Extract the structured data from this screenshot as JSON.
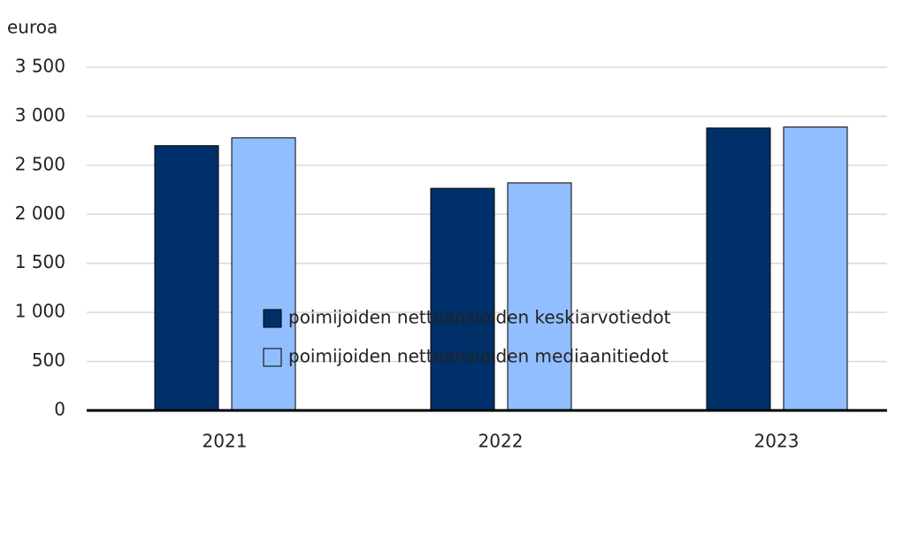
{
  "chart_data": {
    "type": "bar",
    "y_axis_label": "euroa",
    "categories": [
      "2021",
      "2022",
      "2023"
    ],
    "series": [
      {
        "name": "poimijoiden nettoansioiden keskiarvotiedot",
        "color": "#003069",
        "values": [
          2700,
          2265,
          2880
        ]
      },
      {
        "name": "poimijoiden nettoansioiden mediaanitiedot",
        "color": "#91befe",
        "values": [
          2780,
          2320,
          2890
        ]
      }
    ],
    "ylim": [
      0,
      3500
    ],
    "yticks": [
      0,
      500,
      {
        "value": 1000,
        "label": "1 000"
      },
      {
        "value": 1500,
        "label": "1 500"
      },
      {
        "value": 2000,
        "label": "2 000"
      },
      {
        "value": 2500,
        "label": "2 500"
      },
      {
        "value": 3000,
        "label": "3 000"
      },
      {
        "value": 3500,
        "label": "3 500"
      }
    ],
    "grid": true
  }
}
